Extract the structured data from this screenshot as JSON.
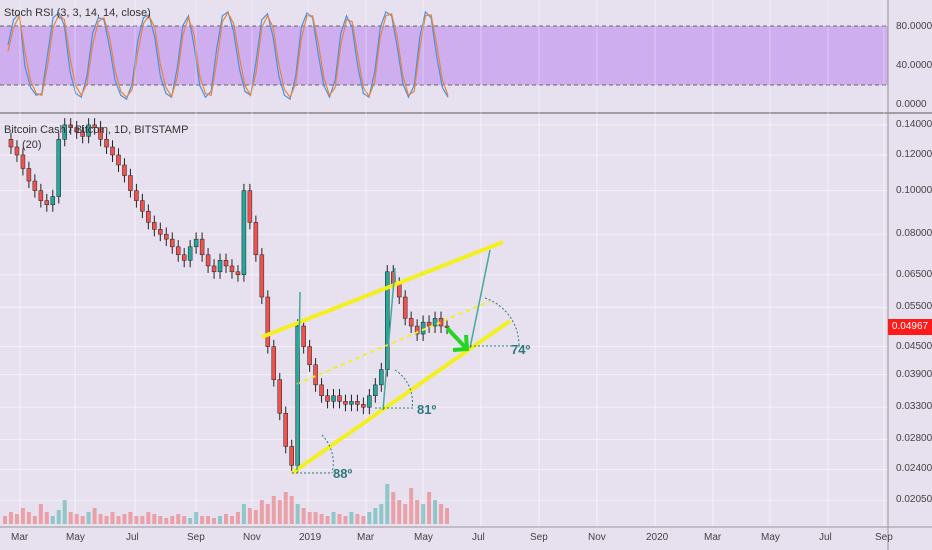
{
  "indicator": {
    "label": "Stoch RSI (3, 3, 14, 14, close)"
  },
  "main": {
    "symbol_label": "Bitcoin Cash / Bitcoin, 1D, BITSTAMP",
    "ma_label": "(20)"
  },
  "last_price": "0.04967",
  "colors": {
    "rsi_band": "#c9a4ef",
    "k_line": "#4a90e2",
    "d_line": "#e8843a",
    "up": "#26a69a",
    "down": "#ef5350",
    "channel": "#f4f01f",
    "arrow": "#22d622",
    "angle": "#2b7a7a"
  },
  "chart_data": [
    {
      "type": "line",
      "title": "Stoch RSI (3, 3, 14, 14, close)",
      "ylim": [
        0,
        100
      ],
      "y_ticks": [
        "0.0000",
        "40.0000",
        "80.0000"
      ],
      "band": [
        20,
        80
      ],
      "series": [
        {
          "values": [
            62,
            88,
            94,
            40,
            18,
            10,
            12,
            52,
            90,
            95,
            82,
            34,
            12,
            8,
            30,
            74,
            90,
            88,
            60,
            25,
            10,
            6,
            22,
            66,
            90,
            93,
            70,
            30,
            12,
            8,
            38,
            82,
            92,
            60,
            20,
            8,
            14,
            58,
            92,
            96,
            76,
            38,
            14,
            10,
            46,
            88,
            94,
            70,
            30,
            10,
            6,
            30,
            80,
            95,
            90,
            52,
            20,
            8,
            26,
            74,
            92,
            80,
            40,
            12,
            8,
            34,
            80,
            96,
            92,
            60,
            22,
            8,
            20,
            70,
            96,
            90,
            50,
            18,
            8
          ]
        },
        {
          "values": [
            55,
            80,
            92,
            55,
            25,
            12,
            10,
            40,
            80,
            93,
            88,
            48,
            20,
            10,
            22,
            62,
            86,
            90,
            70,
            35,
            14,
            8,
            16,
            54,
            84,
            92,
            80,
            42,
            18,
            9,
            28,
            72,
            90,
            72,
            30,
            12,
            10,
            44,
            86,
            95,
            84,
            50,
            20,
            10,
            34,
            80,
            92,
            80,
            42,
            16,
            8,
            22,
            68,
            92,
            92,
            64,
            28,
            10,
            18,
            62,
            88,
            86,
            52,
            18,
            9,
            24,
            70,
            92,
            94,
            70,
            30,
            10,
            14,
            58,
            92,
            93,
            62,
            26,
            10
          ]
        }
      ]
    },
    {
      "type": "candlestick",
      "title": "Bitcoin Cash / Bitcoin, 1D, BITSTAMP",
      "x_ticks": [
        "Mar",
        "May",
        "Jul",
        "Sep",
        "Nov",
        "2019",
        "Mar",
        "May",
        "Jul",
        "Sep",
        "Nov",
        "2020",
        "Mar",
        "May",
        "Jul",
        "Sep"
      ],
      "y_ticks": [
        "0.02050",
        "0.02400",
        "0.02800",
        "0.03300",
        "0.03900",
        "0.04500",
        "0.05500",
        "0.06500",
        "0.08000",
        "0.10000",
        "0.12000",
        "0.14000"
      ],
      "log_scale": true,
      "close_path": [
        0.13,
        0.125,
        0.12,
        0.112,
        0.105,
        0.1,
        0.095,
        0.093,
        0.097,
        0.13,
        0.14,
        0.138,
        0.135,
        0.132,
        0.14,
        0.138,
        0.13,
        0.125,
        0.12,
        0.114,
        0.108,
        0.1,
        0.095,
        0.09,
        0.085,
        0.082,
        0.08,
        0.078,
        0.075,
        0.072,
        0.07,
        0.075,
        0.078,
        0.072,
        0.068,
        0.066,
        0.07,
        0.068,
        0.066,
        0.065,
        0.1,
        0.085,
        0.072,
        0.058,
        0.045,
        0.038,
        0.032,
        0.027,
        0.0245,
        0.05,
        0.045,
        0.041,
        0.037,
        0.035,
        0.034,
        0.035,
        0.034,
        0.0335,
        0.034,
        0.0335,
        0.033,
        0.035,
        0.037,
        0.04,
        0.066,
        0.062,
        0.058,
        0.052,
        0.05,
        0.048,
        0.051,
        0.05,
        0.052,
        0.05,
        0.0497
      ],
      "volume_rel": [
        0.2,
        0.3,
        0.25,
        0.4,
        0.3,
        0.2,
        0.5,
        0.3,
        0.2,
        0.35,
        0.6,
        0.3,
        0.25,
        0.2,
        0.3,
        0.4,
        0.25,
        0.2,
        0.3,
        0.2,
        0.25,
        0.3,
        0.2,
        0.2,
        0.3,
        0.25,
        0.2,
        0.15,
        0.2,
        0.25,
        0.2,
        0.15,
        0.3,
        0.2,
        0.2,
        0.15,
        0.2,
        0.25,
        0.2,
        0.3,
        0.5,
        0.4,
        0.35,
        0.6,
        0.5,
        0.7,
        0.6,
        0.8,
        0.7,
        0.5,
        0.4,
        0.3,
        0.3,
        0.25,
        0.2,
        0.3,
        0.25,
        0.2,
        0.3,
        0.25,
        0.2,
        0.3,
        0.4,
        0.5,
        1.0,
        0.8,
        0.6,
        0.5,
        0.9,
        0.6,
        0.5,
        0.8,
        0.6,
        0.5,
        0.4
      ],
      "annotations": {
        "angles": [
          "88º",
          "81º",
          "74º"
        ],
        "upper_channel": [
          [
            0.0485,
            0.077
          ]
        ],
        "lower_channel": [
          [
            0.024,
            0.05
          ]
        ]
      }
    }
  ]
}
